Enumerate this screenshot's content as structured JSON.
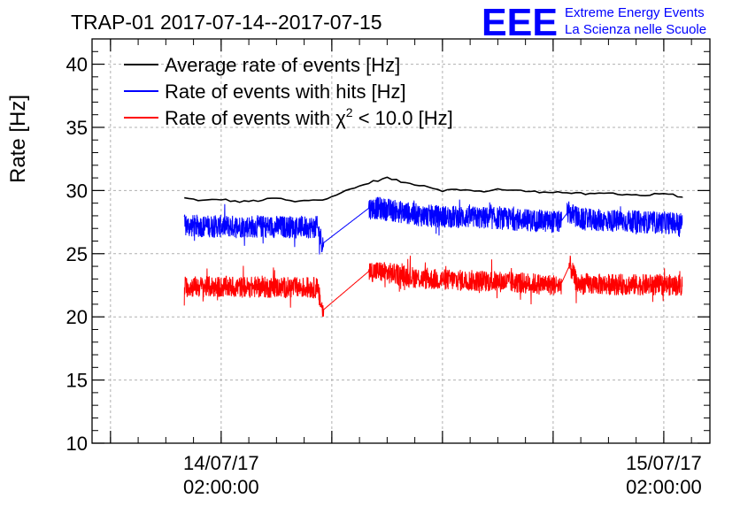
{
  "chart_data": {
    "type": "line",
    "title": "TRAP-01 2017-07-14--2017-07-15",
    "logo": {
      "mark": "EEE",
      "line1": "Extreme Energy Events",
      "line2": "La Scienza nelle Scuole"
    },
    "ylabel": "Rate [Hz]",
    "xlabel": "",
    "ylim": [
      10,
      42
    ],
    "yticks": [
      "10",
      "15",
      "20",
      "25",
      "30",
      "35",
      "40"
    ],
    "xlim_hours": [
      -5,
      28.5
    ],
    "xticks": [
      {
        "hour": 2,
        "date": "14/07/17",
        "time": "02:00:00"
      },
      {
        "hour": 26,
        "date": "15/07/17",
        "time": "02:00:00"
      }
    ],
    "grid": true,
    "legend_position": "top-left",
    "series": [
      {
        "name": "Average rate of events [Hz]",
        "label_pre": "Average rate of events [Hz]",
        "color": "#000000",
        "base_points": [
          [
            0,
            29.4
          ],
          [
            1,
            29.2
          ],
          [
            2,
            29.3
          ],
          [
            3,
            29.1
          ],
          [
            4,
            29.2
          ],
          [
            5,
            29.4
          ],
          [
            6,
            29.1
          ],
          [
            7.2,
            29.3
          ],
          [
            7.5,
            29.3
          ],
          [
            10.2,
            30.7
          ],
          [
            11,
            31.0
          ],
          [
            12,
            30.6
          ],
          [
            13,
            30.4
          ],
          [
            14,
            30.0
          ],
          [
            15,
            30.1
          ],
          [
            16,
            29.9
          ],
          [
            17,
            30.1
          ],
          [
            18,
            30.0
          ],
          [
            19,
            29.9
          ],
          [
            20,
            29.9
          ],
          [
            21,
            29.8
          ],
          [
            22,
            29.7
          ],
          [
            23,
            29.8
          ],
          [
            24,
            29.7
          ],
          [
            25,
            29.6
          ],
          [
            26,
            29.8
          ],
          [
            27,
            29.5
          ]
        ],
        "noise": 0.08
      },
      {
        "name": "Rate of events with hits [Hz]",
        "label_pre": "Rate of events with hits [Hz]",
        "color": "#0000ff",
        "base_points": [
          [
            0,
            27.2
          ],
          [
            7.2,
            27.1
          ],
          [
            7.5,
            25.8
          ],
          [
            10.0,
            28.6
          ],
          [
            10.5,
            28.6
          ],
          [
            13,
            28.0
          ],
          [
            17,
            27.8
          ],
          [
            20.4,
            27.5
          ],
          [
            20.8,
            28.3
          ],
          [
            21.5,
            27.7
          ],
          [
            27,
            27.4
          ]
        ],
        "gaps": [
          [
            7.55,
            10.0
          ],
          [
            20.45,
            20.75
          ]
        ],
        "noise": 0.9
      },
      {
        "name": "Rate of events with χ² < 10.0 [Hz]",
        "label_pre": "Rate of events with ",
        "label_sym": "χ",
        "label_sup": "2",
        "label_post": " < 10.0 [Hz]",
        "color": "#ff0000",
        "base_points": [
          [
            0,
            22.4
          ],
          [
            7.2,
            22.3
          ],
          [
            7.5,
            20.5
          ],
          [
            10.0,
            23.6
          ],
          [
            10.5,
            23.6
          ],
          [
            13,
            23.0
          ],
          [
            17,
            22.8
          ],
          [
            20.4,
            22.5
          ],
          [
            20.9,
            24.1
          ],
          [
            21.3,
            22.6
          ],
          [
            27,
            22.5
          ]
        ],
        "gaps": [
          [
            7.55,
            10.0
          ],
          [
            20.45,
            20.85
          ]
        ],
        "noise": 0.85
      }
    ]
  }
}
